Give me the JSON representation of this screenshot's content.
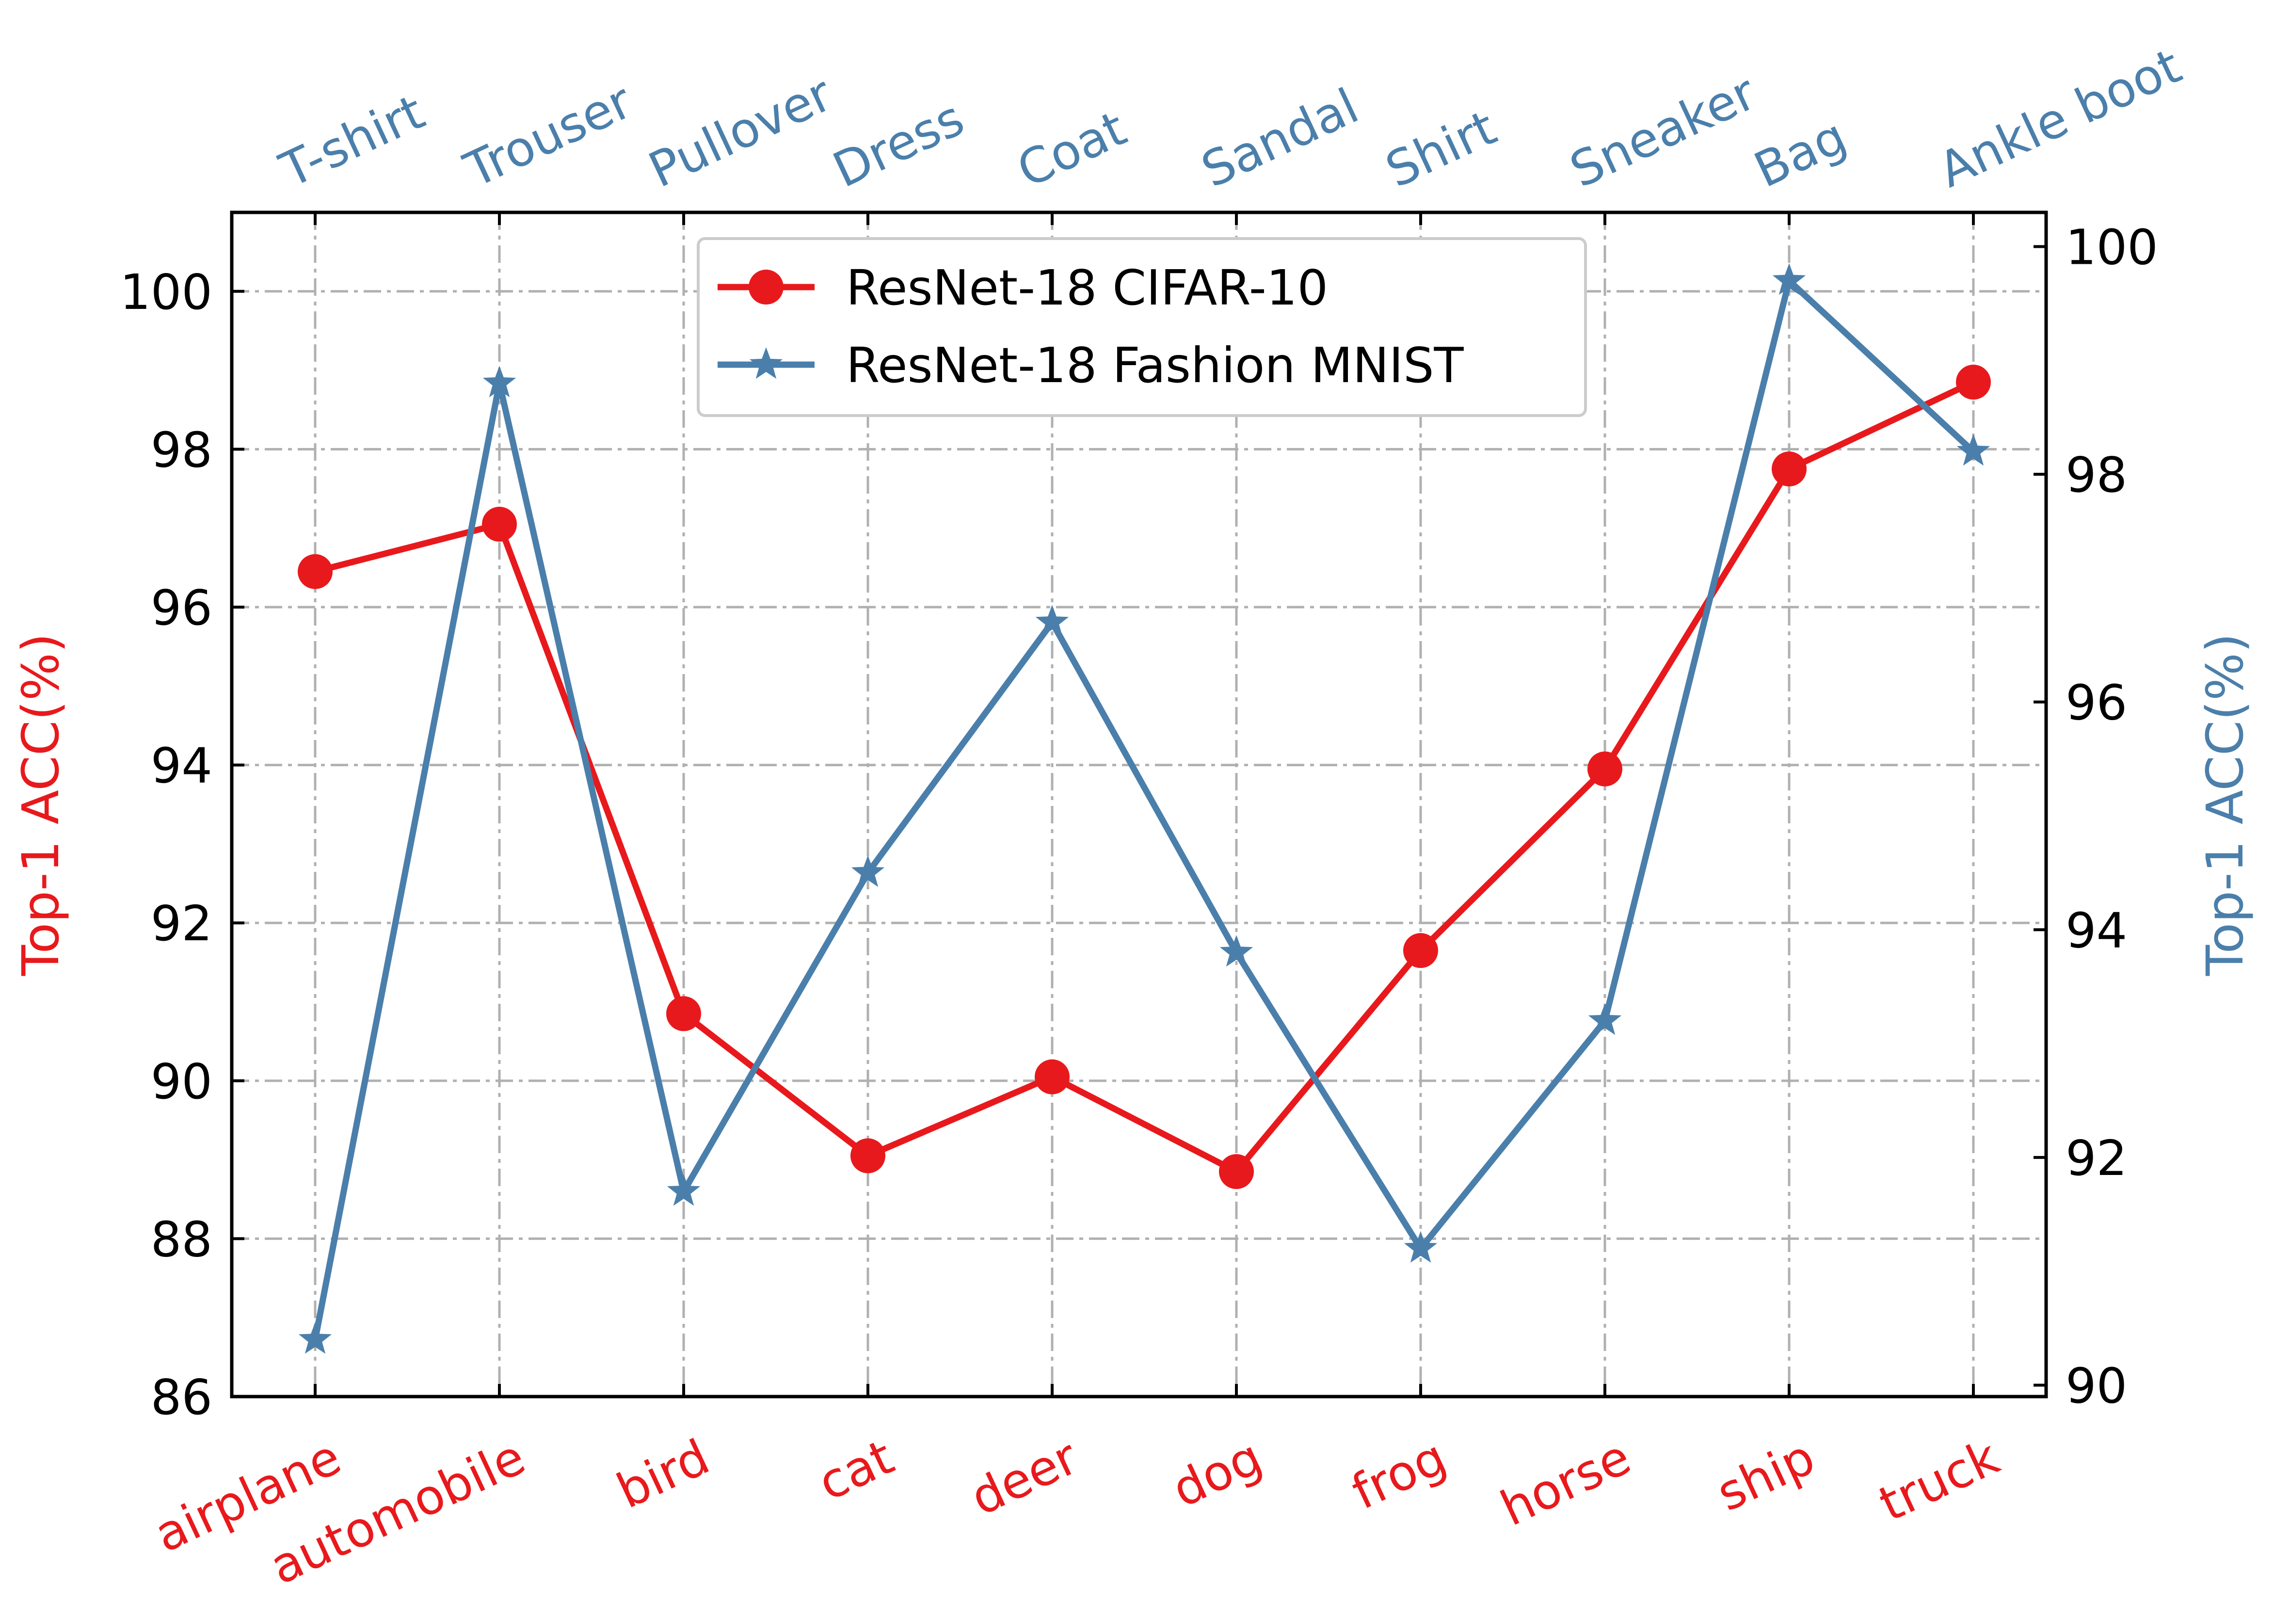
{
  "chart_data": {
    "type": "line",
    "categories": [
      "airplane",
      "automobile",
      "bird",
      "cat",
      "deer",
      "dog",
      "frog",
      "horse",
      "ship",
      "truck"
    ],
    "top_categories": [
      "T-shirt",
      "Trouser",
      "Pullover",
      "Dress",
      "Coat",
      "Sandal",
      "Shirt",
      "Sneaker",
      "Bag",
      "Ankle boot"
    ],
    "series": [
      {
        "name": "ResNet-18 CIFAR-10",
        "axis": "left",
        "color": "#e8191c",
        "marker": "circle",
        "values": [
          96.45,
          97.05,
          90.85,
          89.05,
          90.05,
          88.85,
          91.65,
          93.95,
          97.75,
          98.85
        ]
      },
      {
        "name": "ResNet-18 Fashion MNIST",
        "axis": "right",
        "color": "#4b7fab",
        "marker": "star",
        "values": [
          90.4,
          98.8,
          91.7,
          94.5,
          96.7,
          93.8,
          91.2,
          93.2,
          99.7,
          98.2
        ]
      }
    ],
    "ylabel": "Top-1 ACC(%)",
    "ylabel_right": "Top-1 ACC(%)",
    "ylim": [
      86,
      101
    ],
    "yticks": [
      86,
      88,
      90,
      92,
      94,
      96,
      98,
      100
    ],
    "ylim_right": [
      89.9,
      100.3
    ],
    "yticks_right": [
      90,
      92,
      94,
      96,
      98,
      100
    ],
    "grid": true,
    "legend_position": "top-center",
    "left_color": "#e8191c",
    "right_color": "#4b7fab"
  }
}
